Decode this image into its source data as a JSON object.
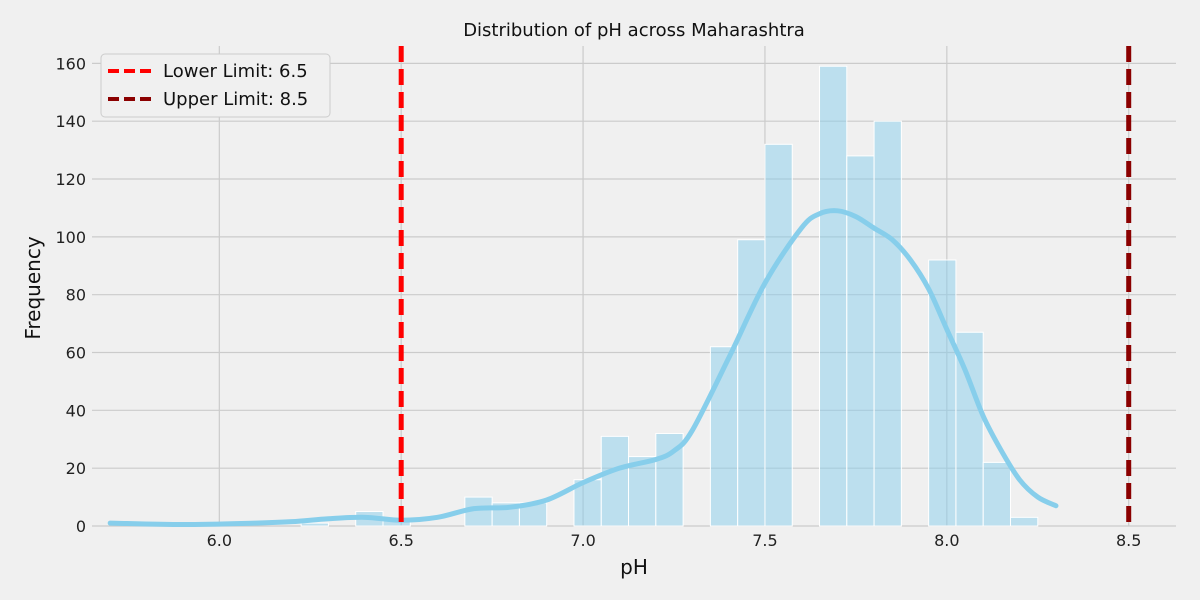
{
  "chart_data": {
    "type": "bar",
    "title": "Distribution of pH across Maharashtra",
    "xlabel": "pH",
    "ylabel": "Frequency",
    "xlim": [
      5.65,
      8.63
    ],
    "ylim": [
      0,
      166
    ],
    "xticks": [
      "6.0",
      "6.5",
      "7.0",
      "7.5",
      "8.0",
      "8.5"
    ],
    "xtick_values": [
      6.0,
      6.5,
      7.0,
      7.5,
      8.0,
      8.5
    ],
    "yticks": [
      "0",
      "20",
      "40",
      "60",
      "80",
      "100",
      "120",
      "140",
      "160"
    ],
    "ytick_values": [
      0,
      20,
      40,
      60,
      80,
      100,
      120,
      140,
      160
    ],
    "grid": true,
    "bin_width": 0.075,
    "bins": [
      {
        "start": 5.7,
        "count": 0
      },
      {
        "start": 5.775,
        "count": 0
      },
      {
        "start": 5.85,
        "count": 0
      },
      {
        "start": 5.925,
        "count": 0
      },
      {
        "start": 6.0,
        "count": 0
      },
      {
        "start": 6.075,
        "count": 0
      },
      {
        "start": 6.15,
        "count": 0
      },
      {
        "start": 6.225,
        "count": 1
      },
      {
        "start": 6.3,
        "count": 0
      },
      {
        "start": 6.375,
        "count": 5
      },
      {
        "start": 6.45,
        "count": 2
      },
      {
        "start": 6.525,
        "count": 0
      },
      {
        "start": 6.6,
        "count": 0
      },
      {
        "start": 6.675,
        "count": 10
      },
      {
        "start": 6.75,
        "count": 8
      },
      {
        "start": 6.825,
        "count": 8
      },
      {
        "start": 6.9,
        "count": 0
      },
      {
        "start": 6.975,
        "count": 16
      },
      {
        "start": 7.05,
        "count": 31
      },
      {
        "start": 7.125,
        "count": 24
      },
      {
        "start": 7.2,
        "count": 32
      },
      {
        "start": 7.275,
        "count": 0
      },
      {
        "start": 7.35,
        "count": 62
      },
      {
        "start": 7.425,
        "count": 99
      },
      {
        "start": 7.5,
        "count": 132
      },
      {
        "start": 7.575,
        "count": 0
      },
      {
        "start": 7.65,
        "count": 159
      },
      {
        "start": 7.725,
        "count": 128
      },
      {
        "start": 7.8,
        "count": 140
      },
      {
        "start": 7.875,
        "count": 0
      },
      {
        "start": 7.95,
        "count": 92
      },
      {
        "start": 8.025,
        "count": 67
      },
      {
        "start": 8.1,
        "count": 22
      },
      {
        "start": 8.175,
        "count": 3
      }
    ],
    "kde": {
      "x": [
        5.7,
        5.9,
        6.1,
        6.2,
        6.3,
        6.4,
        6.5,
        6.6,
        6.7,
        6.8,
        6.9,
        7.0,
        7.1,
        7.2,
        7.25,
        7.3,
        7.4,
        7.5,
        7.6,
        7.65,
        7.7,
        7.75,
        7.8,
        7.85,
        7.9,
        7.95,
        8.0,
        8.05,
        8.1,
        8.15,
        8.2,
        8.25,
        8.3
      ],
      "y": [
        1,
        0.5,
        1,
        1.5,
        2.5,
        3,
        2,
        3,
        6,
        6.5,
        9,
        15,
        20,
        23,
        26,
        33,
        58,
        84,
        103,
        108,
        109,
        107,
        103,
        99,
        92,
        82,
        68,
        54,
        38,
        26,
        16,
        10,
        7
      ],
      "color": "#87ceeb"
    },
    "bar_color": "#87ceeb",
    "vlines": [
      {
        "label": "Lower Limit: 6.5",
        "x": 6.5,
        "color": "#ff0000",
        "style": "dashed"
      },
      {
        "label": "Upper Limit: 8.5",
        "x": 8.5,
        "color": "#8b0000",
        "style": "dashed"
      }
    ],
    "legend_position": "top-left"
  }
}
